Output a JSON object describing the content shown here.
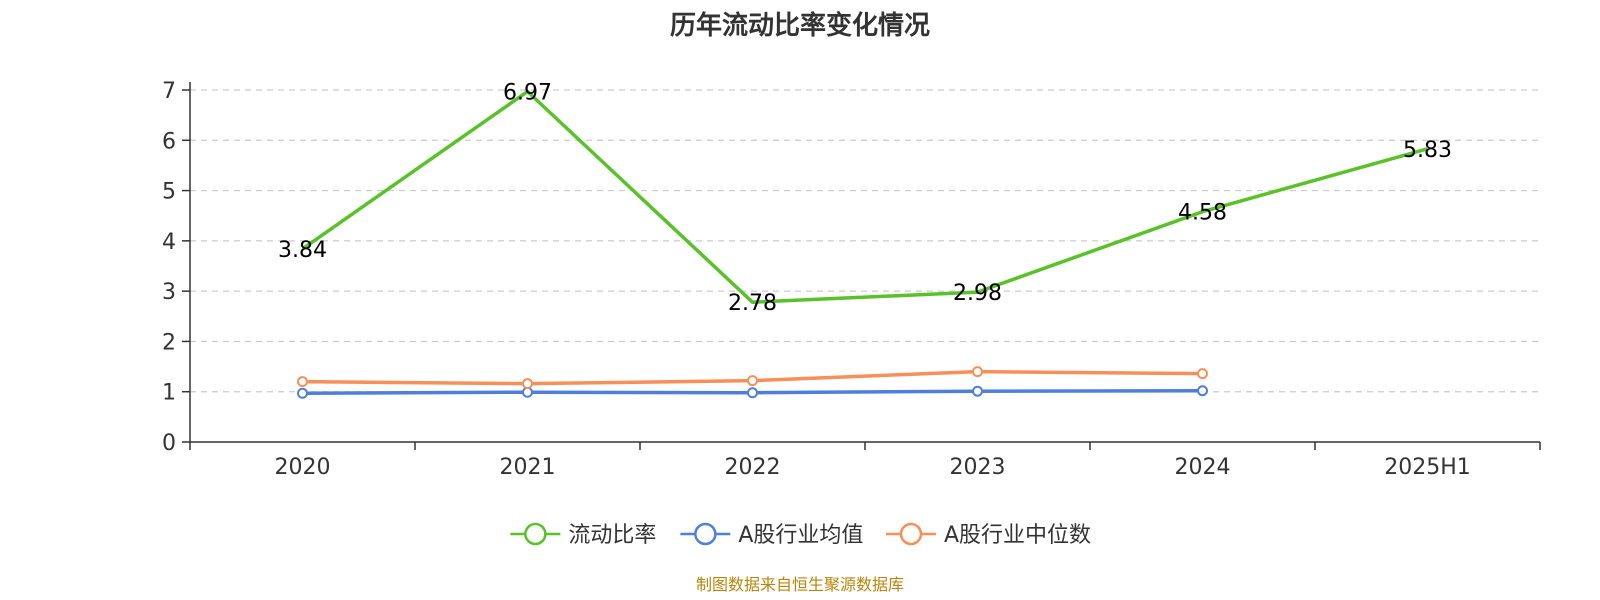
{
  "chart_data": {
    "type": "line",
    "title": "历年流动比率变化情况",
    "categories": [
      "2020",
      "2021",
      "2022",
      "2023",
      "2024",
      "2025H1"
    ],
    "yticks": [
      "0",
      "1",
      "2",
      "3",
      "4",
      "5",
      "6",
      "7"
    ],
    "ylim": [
      0,
      7
    ],
    "grid": true,
    "legend_position": "bottom-center",
    "series": [
      {
        "name": "流动比率",
        "color": "#5ac229",
        "values": [
          3.84,
          6.97,
          2.78,
          2.98,
          4.58,
          5.83
        ],
        "labels": [
          "3.84",
          "6.97",
          "2.78",
          "2.98",
          "4.58",
          "5.83"
        ],
        "show_markers": false
      },
      {
        "name": "A股行业均值",
        "color": "#4f7fdc",
        "values": [
          0.97,
          0.99,
          0.98,
          1.01,
          1.02,
          null
        ],
        "show_markers": true
      },
      {
        "name": "A股行业中位数",
        "color": "#f79058",
        "values": [
          1.2,
          1.16,
          1.22,
          1.4,
          1.36,
          null
        ],
        "show_markers": true
      }
    ],
    "source": "制图数据来自恒生聚源数据库"
  }
}
